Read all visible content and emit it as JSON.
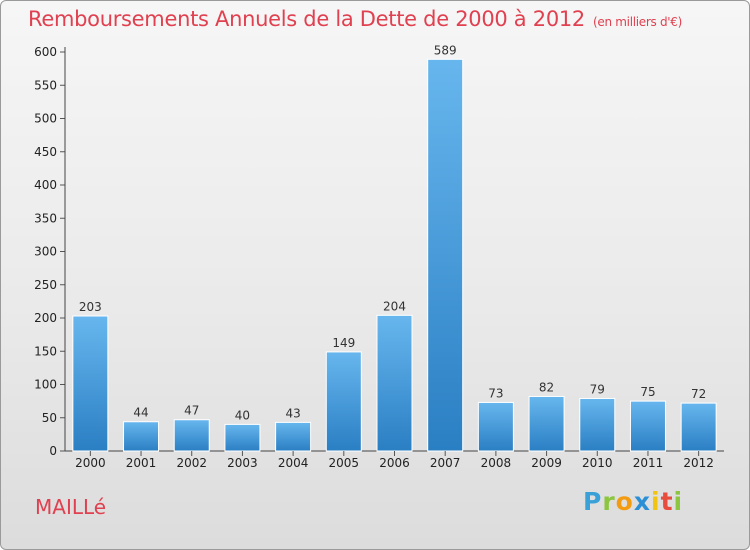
{
  "header": {
    "title": "Remboursements Annuels de la Dette de 2000 à 2012",
    "unit": "(en milliers d'€)"
  },
  "footer": {
    "place": "MAILLé",
    "logo_letters": [
      "P",
      "r",
      "o",
      "x",
      "i",
      "t",
      "i"
    ],
    "logo_colors": [
      "#3aa0d8",
      "#8cc63f",
      "#f39c12",
      "#2b8fd6",
      "#f1c40f",
      "#e74c3c",
      "#8cc63f"
    ]
  },
  "colors": {
    "title": "#e0404f",
    "bar_light": "#67b6ee",
    "bar_dark": "#2a7fc3"
  },
  "chart_data": {
    "type": "bar",
    "title": "Remboursements Annuels de la Dette de 2000 à 2012",
    "subtitle": "(en milliers d'€)",
    "xlabel": "",
    "ylabel": "",
    "categories": [
      "2000",
      "2001",
      "2002",
      "2003",
      "2004",
      "2005",
      "2006",
      "2007",
      "2008",
      "2009",
      "2010",
      "2011",
      "2012"
    ],
    "values": [
      203,
      44,
      47,
      40,
      43,
      149,
      204,
      589,
      73,
      82,
      79,
      75,
      72
    ],
    "ylim": [
      0,
      600
    ],
    "yticks": [
      0,
      50,
      100,
      150,
      200,
      250,
      300,
      350,
      400,
      450,
      500,
      550,
      600
    ],
    "grid": false,
    "legend": "none"
  }
}
